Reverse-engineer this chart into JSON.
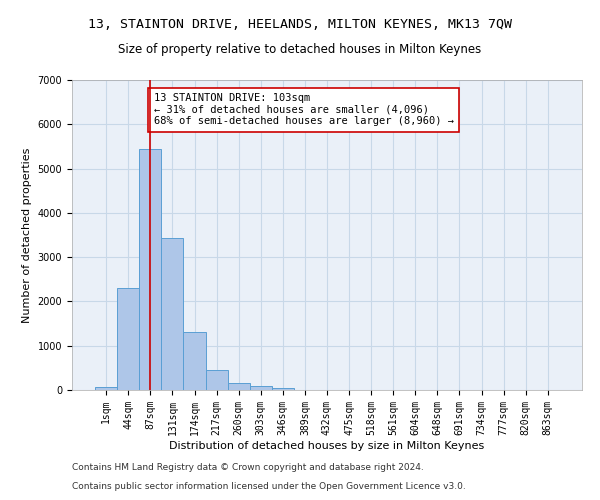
{
  "title1": "13, STAINTON DRIVE, HEELANDS, MILTON KEYNES, MK13 7QW",
  "title2": "Size of property relative to detached houses in Milton Keynes",
  "xlabel": "Distribution of detached houses by size in Milton Keynes",
  "ylabel": "Number of detached properties",
  "bar_color": "#aec6e8",
  "bar_edge_color": "#5a9fd4",
  "grid_color": "#c8d8e8",
  "background_color": "#eaf0f8",
  "categories": [
    "1sqm",
    "44sqm",
    "87sqm",
    "131sqm",
    "174sqm",
    "217sqm",
    "260sqm",
    "303sqm",
    "346sqm",
    "389sqm",
    "432sqm",
    "475sqm",
    "518sqm",
    "561sqm",
    "604sqm",
    "648sqm",
    "691sqm",
    "734sqm",
    "777sqm",
    "820sqm",
    "863sqm"
  ],
  "values": [
    75,
    2300,
    5450,
    3440,
    1310,
    460,
    165,
    90,
    55,
    0,
    0,
    0,
    0,
    0,
    0,
    0,
    0,
    0,
    0,
    0,
    0
  ],
  "vline_x": 2,
  "vline_color": "#cc0000",
  "annotation_text": "13 STAINTON DRIVE: 103sqm\n← 31% of detached houses are smaller (4,096)\n68% of semi-detached houses are larger (8,960) →",
  "annotation_box_color": "#ffffff",
  "annotation_box_edge": "#cc0000",
  "ylim": [
    0,
    7000
  ],
  "yticks": [
    0,
    1000,
    2000,
    3000,
    4000,
    5000,
    6000,
    7000
  ],
  "footer1": "Contains HM Land Registry data © Crown copyright and database right 2024.",
  "footer2": "Contains public sector information licensed under the Open Government Licence v3.0.",
  "title1_fontsize": 9.5,
  "title2_fontsize": 8.5,
  "xlabel_fontsize": 8,
  "ylabel_fontsize": 8,
  "tick_fontsize": 7,
  "annotation_fontsize": 7.5,
  "footer_fontsize": 6.5
}
